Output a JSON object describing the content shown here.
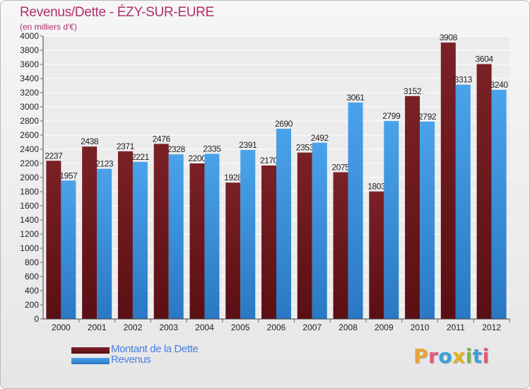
{
  "header": {
    "title": "Revenus/Dette - ÉZY-SUR-EURE",
    "subtitle": "(en milliers d'€)"
  },
  "legend": {
    "debt_label": "Montant de la Dette",
    "revenue_label": "Revenus"
  },
  "logo": {
    "text": "Proxiti",
    "colors": [
      "#e8a33a",
      "#e05a7a",
      "#3aa0d8",
      "#e0b020",
      "#7ab83a",
      "#3aa0d8",
      "#e05a7a"
    ]
  },
  "colors": {
    "debt": "#7a2126",
    "debt_dark": "#5a0f14",
    "revenue": "#4aa3ea",
    "revenue_dark": "#2a78c4",
    "title": "#b0306a"
  },
  "chart_data": {
    "type": "bar",
    "categories": [
      "2000",
      "2001",
      "2002",
      "2003",
      "2004",
      "2005",
      "2006",
      "2007",
      "2008",
      "2009",
      "2010",
      "2011",
      "2012"
    ],
    "series": [
      {
        "name": "Montant de la Dette",
        "values": [
          2237,
          2438,
          2371,
          2476,
          2200,
          1928,
          2170,
          2353,
          2075,
          1803,
          3152,
          3908,
          3604
        ]
      },
      {
        "name": "Revenus",
        "values": [
          1957,
          2123,
          2221,
          2328,
          2335,
          2391,
          2690,
          2492,
          3061,
          2799,
          2792,
          3313,
          3240
        ]
      }
    ],
    "ylim": [
      0,
      4000
    ],
    "ytick_step": 200,
    "grid": true,
    "legend_position": "bottom-left"
  }
}
